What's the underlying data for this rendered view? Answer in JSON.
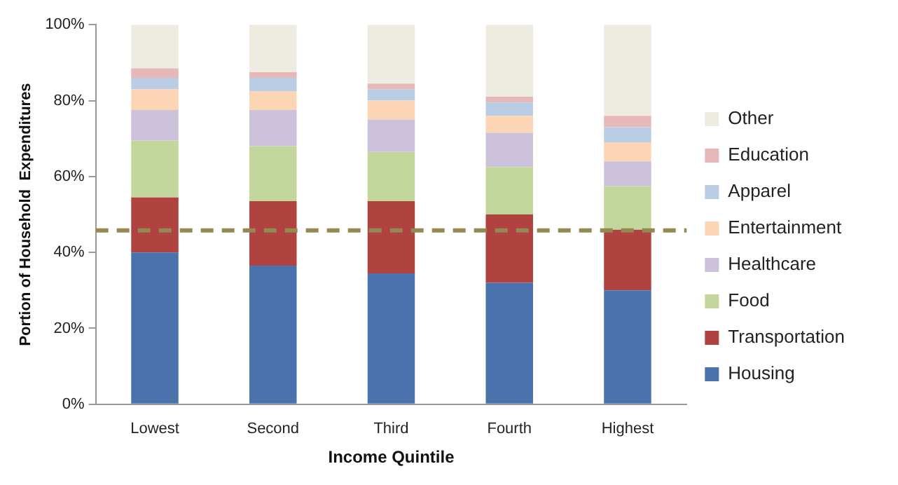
{
  "chart_data": {
    "type": "bar",
    "stacked": true,
    "xlabel": "Income Quintile",
    "ylabel": "Portion of Household  Expenditures",
    "categories": [
      "Lowest",
      "Second",
      "Third",
      "Fourth",
      "Highest"
    ],
    "series": [
      {
        "name": "Housing",
        "color": "#4a72ac",
        "values": [
          40,
          36.5,
          34.5,
          32,
          30
        ]
      },
      {
        "name": "Transportation",
        "color": "#b04240",
        "values": [
          14.5,
          17,
          19,
          18,
          16
        ]
      },
      {
        "name": "Food",
        "color": "#c3d69b",
        "values": [
          15,
          14.5,
          13,
          12.5,
          11.5
        ]
      },
      {
        "name": "Healthcare",
        "color": "#ccc1da",
        "values": [
          8,
          9.5,
          8.5,
          9,
          6.5
        ]
      },
      {
        "name": "Entertainment",
        "color": "#fcd5b5",
        "values": [
          5.5,
          5,
          5,
          4.5,
          5
        ]
      },
      {
        "name": "Apparel",
        "color": "#b9cde5",
        "values": [
          3,
          3.5,
          3,
          3.5,
          4
        ]
      },
      {
        "name": "Education",
        "color": "#e6b9b8",
        "values": [
          2.5,
          1.5,
          1.5,
          1.5,
          3
        ]
      },
      {
        "name": "Other",
        "color": "#eeece1",
        "values": [
          11.5,
          12.5,
          15.5,
          19,
          24
        ]
      }
    ],
    "ylim": [
      0,
      100
    ],
    "yticks": [
      {
        "value": 0,
        "label": "0%"
      },
      {
        "value": 20,
        "label": "20%"
      },
      {
        "value": 40,
        "label": "40%"
      },
      {
        "value": 60,
        "label": "60%"
      },
      {
        "value": 80,
        "label": "80%"
      },
      {
        "value": 100,
        "label": "100%"
      }
    ],
    "grid": false,
    "legend": "right",
    "ref_lines": [
      {
        "axis": "y",
        "value": 45.8,
        "color": "#938953",
        "line_style": "dashed"
      }
    ]
  }
}
